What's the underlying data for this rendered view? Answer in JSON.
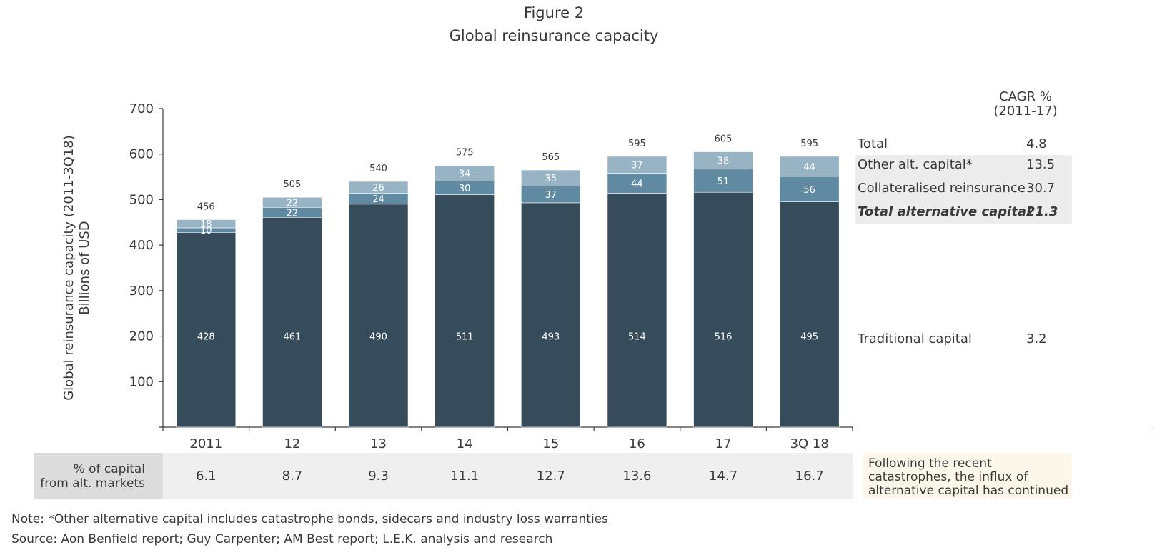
{
  "figure_label": "Figure 2",
  "figure_title": "Global reinsurance capacity",
  "colors": {
    "traditional": "#364c5a",
    "collateralised": "#5f8aa2",
    "other_alt": "#98b3c4",
    "axis": "#3a3a3a"
  },
  "chart_data": {
    "type": "bar",
    "stacked": true,
    "categories": [
      "2011",
      "12",
      "13",
      "14",
      "15",
      "16",
      "17",
      "3Q 18"
    ],
    "series": [
      {
        "name": "Traditional capital",
        "values": [
          428,
          461,
          490,
          511,
          493,
          514,
          516,
          495
        ]
      },
      {
        "name": "Collateralised reinsurance",
        "values": [
          10,
          22,
          24,
          30,
          37,
          44,
          51,
          56
        ]
      },
      {
        "name": "Other alt. capital*",
        "values": [
          18,
          22,
          26,
          34,
          35,
          37,
          38,
          44
        ]
      }
    ],
    "totals": [
      456,
      505,
      540,
      575,
      565,
      595,
      605,
      595
    ],
    "ylabel": "Global reinsurance capacity (2011-3Q18)",
    "ylabel_units": "Billions of USD",
    "ylim": [
      0,
      700
    ],
    "yticks": [
      100,
      200,
      300,
      400,
      500,
      600,
      700
    ],
    "pct_alt_markets": [
      "6.1",
      "8.7",
      "9.3",
      "11.1",
      "12.7",
      "13.6",
      "14.7",
      "16.7"
    ]
  },
  "cagr": {
    "header_line1": "CAGR %",
    "header_line2": "(2011-17)",
    "rows": {
      "total": {
        "label": "Total",
        "value": "4.8"
      },
      "other_alt": {
        "label": "Other alt. capital*",
        "value": "13.5"
      },
      "collateralised": {
        "label": "Collateralised reinsurance",
        "value": "30.7"
      },
      "total_alt": {
        "label": "Total alternative capital",
        "value": "21.3"
      },
      "traditional": {
        "label": "Traditional capital",
        "value": "3.2"
      }
    }
  },
  "pct_row": {
    "label_line1": "% of capital",
    "label_line2": "from alt. markets"
  },
  "callout": "Following the recent catastrophes, the influx of alternative capital has continued",
  "note": "Note: *Other alternative capital includes catastrophe bonds, sidecars and industry loss warranties",
  "source": "Source: Aon Benfield report; Guy Carpenter; AM Best report; L.E.K. analysis and research"
}
